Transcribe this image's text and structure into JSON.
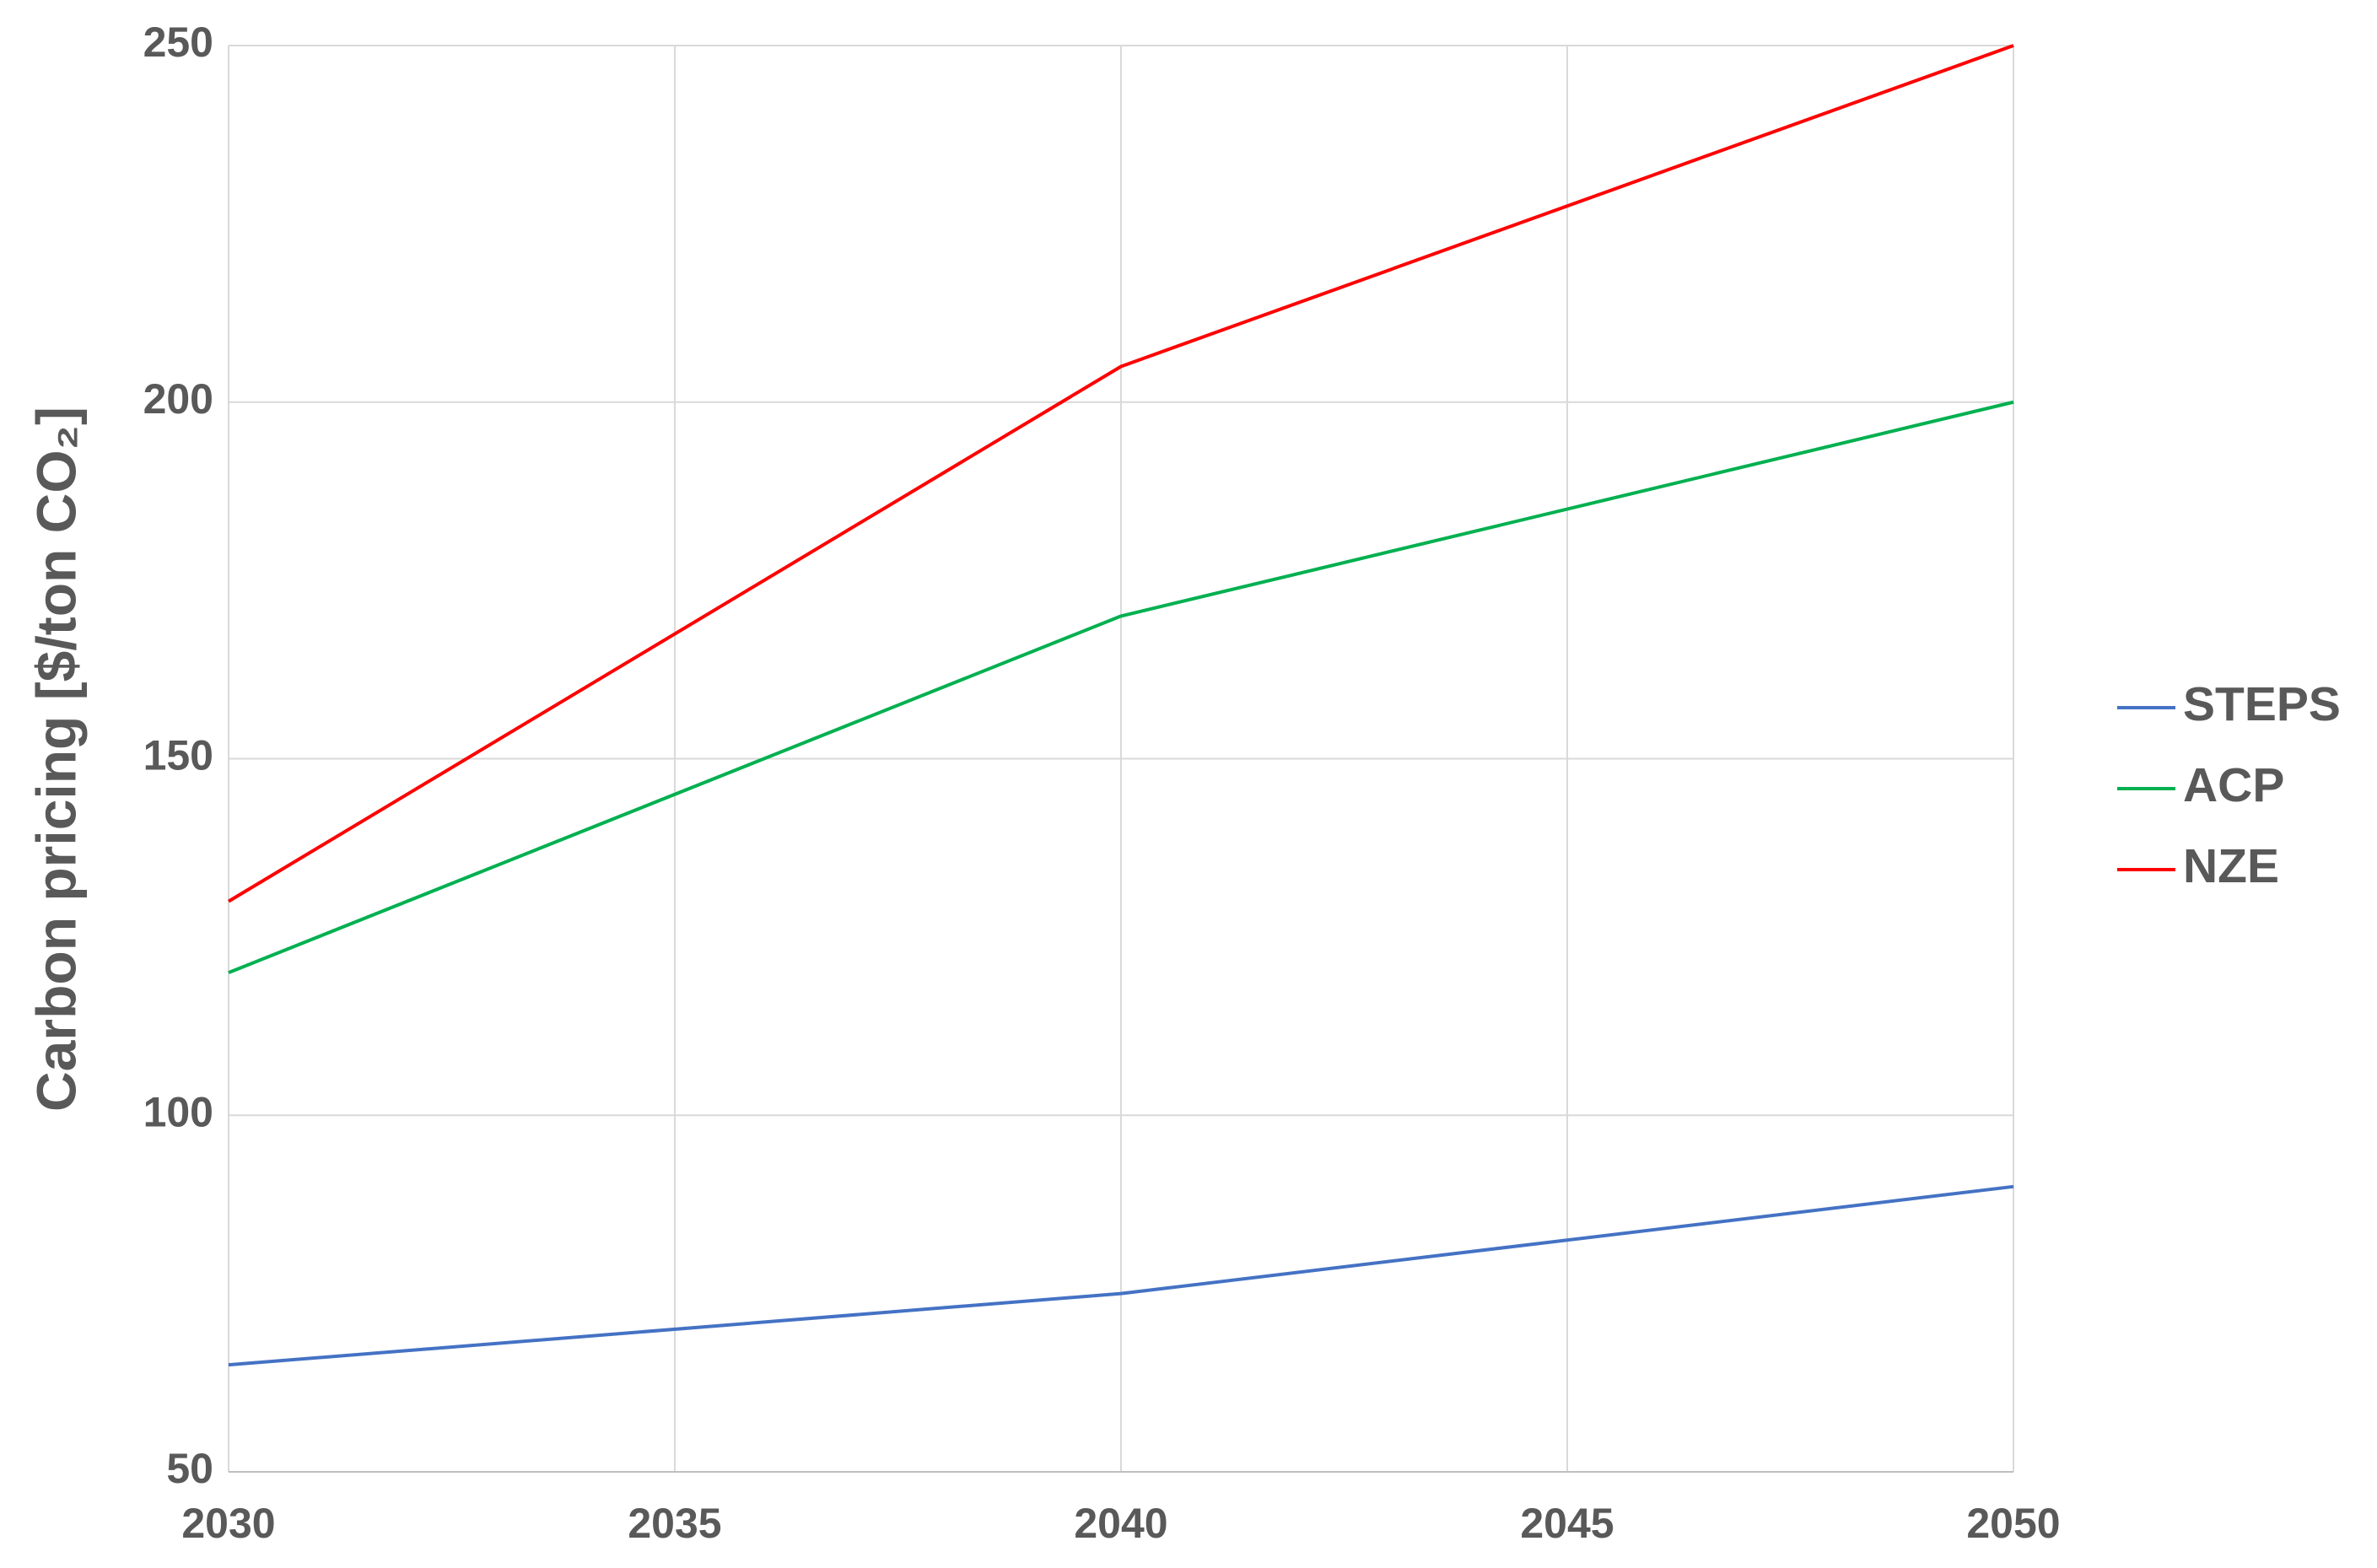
{
  "chart_data": {
    "type": "line",
    "y_label": "Carbon pricing [$/ton CO₂]",
    "x": [
      2030,
      2040,
      2050
    ],
    "series": [
      {
        "name": "STEPS",
        "color": "#4472c4",
        "values": [
          65,
          75,
          90
        ]
      },
      {
        "name": "ACP",
        "color": "#00b050",
        "values": [
          120,
          170,
          200
        ]
      },
      {
        "name": "NZE",
        "color": "#ff0000",
        "values": [
          130,
          205,
          250
        ]
      }
    ],
    "xlim": [
      2030,
      2050
    ],
    "xticks": [
      2030,
      2035,
      2040,
      2045,
      2050
    ],
    "ylim": [
      50,
      250
    ],
    "yticks": [
      50,
      100,
      150,
      200,
      250
    ],
    "grid": true,
    "legend": "right"
  }
}
